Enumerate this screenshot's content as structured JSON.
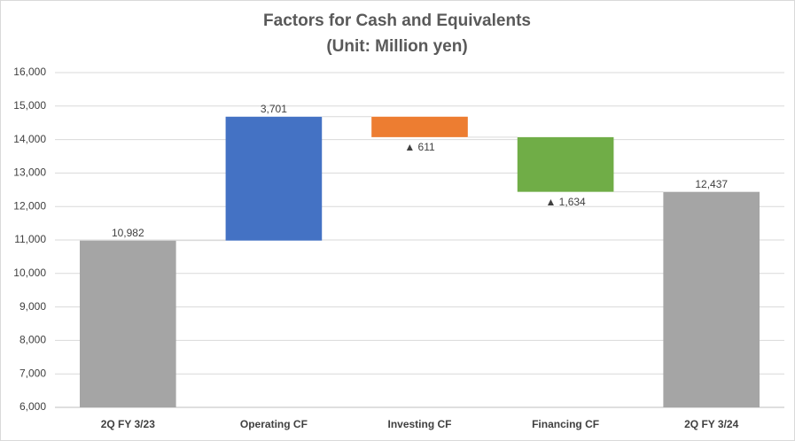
{
  "chart_data": {
    "type": "waterfall",
    "title": "Factors for Cash and Equivalents",
    "subtitle": "(Unit: Million yen)",
    "categories": [
      "2Q FY 3/23",
      "Operating CF",
      "Investing CF",
      "Financing CF",
      "2Q FY 3/24"
    ],
    "values": [
      10982,
      3701,
      -611,
      -1634,
      12437
    ],
    "value_labels": [
      "10,982",
      "3,701",
      "▲ 611",
      "▲ 1,634",
      "12,437"
    ],
    "totals": [
      true,
      false,
      false,
      false,
      true
    ],
    "colors": [
      "#a5a5a5",
      "#4472c4",
      "#ed7d31",
      "#70ad47",
      "#a5a5a5"
    ],
    "ylim": [
      6000,
      16000
    ],
    "yticks": [
      {
        "value": 6000,
        "label": "6,000"
      },
      {
        "value": 7000,
        "label": "7,000"
      },
      {
        "value": 8000,
        "label": "8,000"
      },
      {
        "value": 9000,
        "label": "9,000"
      },
      {
        "value": 10000,
        "label": "10,000"
      },
      {
        "value": 11000,
        "label": "11,000"
      },
      {
        "value": 12000,
        "label": "12,000"
      },
      {
        "value": 13000,
        "label": "13,000"
      },
      {
        "value": 14000,
        "label": "14,000"
      },
      {
        "value": 15000,
        "label": "15,000"
      },
      {
        "value": 16000,
        "label": "16,000"
      }
    ],
    "grid": true
  }
}
